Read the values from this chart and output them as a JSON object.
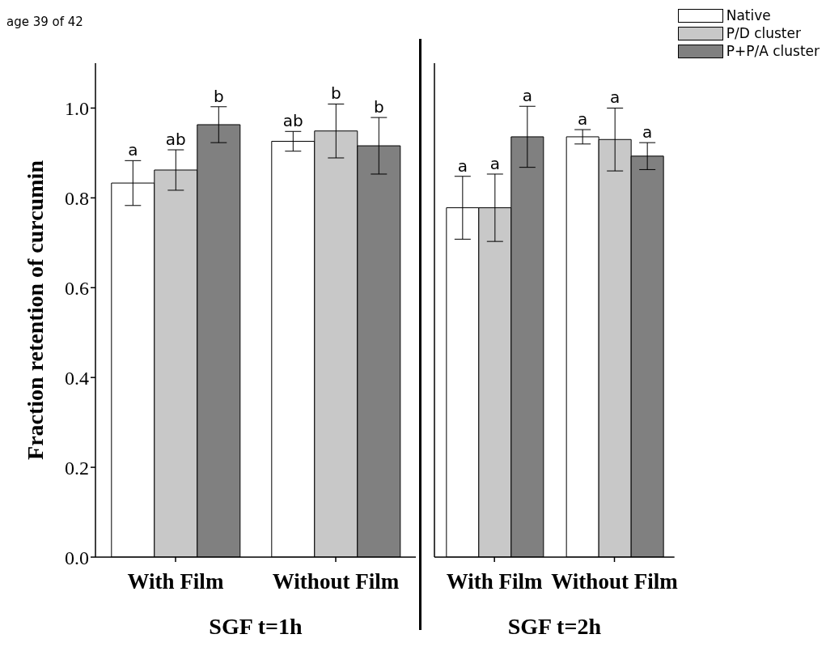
{
  "chart_data": [
    {
      "type": "bar",
      "xlabel": "SGF t=1h",
      "ylabel": "Fraction retention of curcumin",
      "categories": [
        "With Film",
        "Without Film"
      ],
      "series": [
        {
          "color": "#ffffff",
          "values": [
            0.833,
            0.926
          ],
          "errors": [
            0.05,
            0.022
          ]
        },
        {
          "color": "#c8c8c8",
          "values": [
            0.862,
            0.949
          ],
          "errors": [
            0.045,
            0.06
          ]
        },
        {
          "color": "#808080",
          "values": [
            0.963,
            0.916
          ],
          "errors": [
            0.04,
            0.063
          ]
        }
      ],
      "ylim": [
        0,
        1.1
      ],
      "yticks": [
        {
          "value": 0,
          "label": "0.0"
        },
        {
          "value": 0.2,
          "label": "0.2"
        },
        {
          "value": 0.4,
          "label": "0.4"
        },
        {
          "value": 0.6,
          "label": "0.6"
        },
        {
          "value": 0.8,
          "label": "0.8"
        },
        {
          "value": 1,
          "label": "1.0"
        }
      ],
      "grid": false,
      "legend": false,
      "annotations": [
        {
          "text": "a",
          "x": "With Film",
          "y": 0.883
        },
        {
          "text": "ab",
          "x": "With Film",
          "y": 0.907
        },
        "b",
        {
          "text": "ab",
          "x": "Without Film",
          "y": 0.948
        },
        {
          "text": "b",
          "x": "Without Film",
          "y": 1.009
        },
        {
          "text": "b",
          "x": "Without Film",
          "y": 0.979
        },
        "age 39 of 42"
      ]
    },
    {
      "type": "bar",
      "xlabel": "SGF t=2h",
      "categories": [
        "With Film",
        "Without Film"
      ],
      "series": [
        {
          "name": "Native",
          "color": "#ffffff",
          "values": [
            0.778,
            0.936
          ],
          "errors": [
            0.07,
            0.016
          ]
        },
        {
          "name": "P/D cluster",
          "color": "#c8c8c8",
          "values": [
            0.778,
            0.93
          ],
          "errors": [
            0.075,
            0.07
          ]
        },
        {
          "name": "P+P/A cluster",
          "color": "#808080",
          "values": [
            0.936,
            0.893
          ],
          "errors": [
            0.068,
            0.03
          ]
        }
      ],
      "ylim": [
        0,
        1.1
      ],
      "tick_labels": "x",
      "grid": false,
      "legend": "top right",
      "annotations": [
        {
          "text": "a",
          "x": "With Film",
          "y": 0.848
        },
        {
          "text": "a",
          "x": "With Film",
          "y": 0.853
        },
        "a",
        {
          "text": "a",
          "x": "Without Film",
          "y": 0.952
        },
        {
          "text": "a",
          "x": "Without Film",
          "y": 1.0
        },
        {
          "text": "a",
          "x": "Without Film",
          "y": 0.923
        }
      ]
    }
  ]
}
